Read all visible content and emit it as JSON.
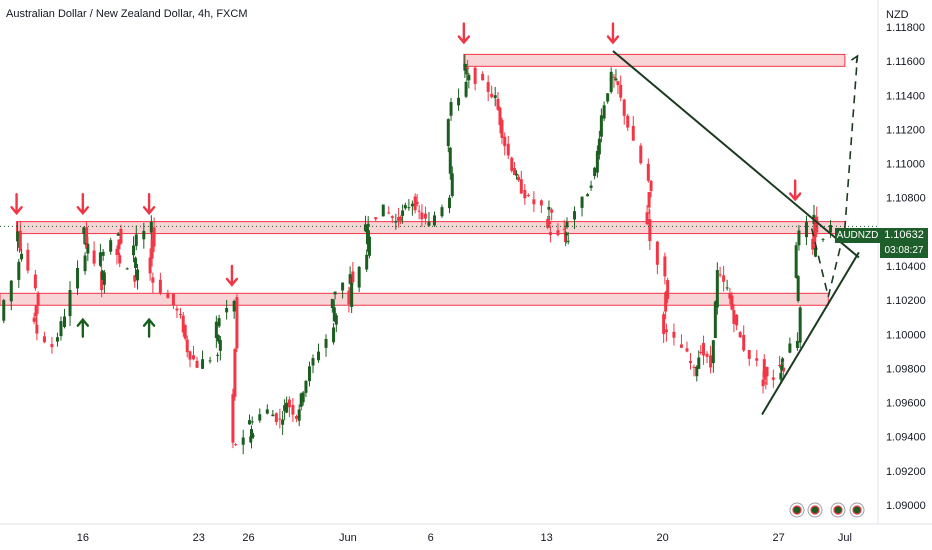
{
  "header": {
    "title": "Australian Dollar / New Zealand Dollar, 4h, FXCM"
  },
  "price_axis": {
    "currency": "NZD"
  },
  "symbol_label": {
    "ticker": "AUDNZD",
    "price": "1.10632",
    "countdown": "03:08:27"
  },
  "chart_data": {
    "type": "candlestick",
    "title": "Australian Dollar / New Zealand Dollar, 4h, FXCM",
    "y_unit": "NZD",
    "ylim": [
      1.089,
      1.119
    ],
    "y_ticks": [
      "1.11800",
      "1.11600",
      "1.11400",
      "1.11200",
      "1.11000",
      "1.10800",
      "1.10600",
      "1.10400",
      "1.10200",
      "1.10000",
      "1.09800",
      "1.09600",
      "1.09400",
      "1.09200",
      "1.09000"
    ],
    "x_ticks": [
      "16",
      "23",
      "26",
      "Jun",
      "6",
      "13",
      "20",
      "27",
      "Jul"
    ],
    "last_price": 1.10632,
    "colors": {
      "up": "#1b5e20",
      "down": "#f23645",
      "zone_fill": "#f7c6c9",
      "zone_stroke": "#f23645",
      "trend": "#1b3a1f",
      "arrow_down": "#f23645",
      "arrow_up": "#1b5e20",
      "badge": "#1e5e2a"
    },
    "price_path": [
      {
        "date": "2022-05-11",
        "price": 1.1008
      },
      {
        "date": "2022-05-12",
        "price": 1.1043
      },
      {
        "date": "2022-05-12",
        "price": 1.1063
      },
      {
        "date": "2022-05-13",
        "price": 1.1024
      },
      {
        "date": "2022-05-13",
        "price": 1.1005
      },
      {
        "date": "2022-05-14",
        "price": 1.0993
      },
      {
        "date": "2022-05-15",
        "price": 1.1012
      },
      {
        "date": "2022-05-16",
        "price": 1.1049
      },
      {
        "date": "2022-05-16",
        "price": 1.1063
      },
      {
        "date": "2022-05-17",
        "price": 1.1028
      },
      {
        "date": "2022-05-17",
        "price": 1.1046
      },
      {
        "date": "2022-05-18",
        "price": 1.1061
      },
      {
        "date": "2022-05-18",
        "price": 1.1045
      },
      {
        "date": "2022-05-19",
        "price": 1.1032
      },
      {
        "date": "2022-05-19",
        "price": 1.1052
      },
      {
        "date": "2022-05-20",
        "price": 1.1063
      },
      {
        "date": "2022-05-20",
        "price": 1.1036
      },
      {
        "date": "2022-05-21",
        "price": 1.1021
      },
      {
        "date": "2022-05-22",
        "price": 1.1009
      },
      {
        "date": "2022-05-22",
        "price": 1.0991
      },
      {
        "date": "2022-05-23",
        "price": 1.0982
      },
      {
        "date": "2022-05-24",
        "price": 1.0988
      },
      {
        "date": "2022-05-24",
        "price": 1.1006
      },
      {
        "date": "2022-05-25",
        "price": 1.1019
      },
      {
        "date": "2022-05-25",
        "price": 1.0935
      },
      {
        "date": "2022-05-26",
        "price": 1.0938
      },
      {
        "date": "2022-05-26",
        "price": 1.0949
      },
      {
        "date": "2022-05-27",
        "price": 1.0955
      },
      {
        "date": "2022-05-28",
        "price": 1.0949
      },
      {
        "date": "2022-05-28",
        "price": 1.0961
      },
      {
        "date": "2022-05-29",
        "price": 1.0952
      },
      {
        "date": "2022-05-29",
        "price": 1.0968
      },
      {
        "date": "2022-05-30",
        "price": 1.0985
      },
      {
        "date": "2022-05-31",
        "price": 1.1004
      },
      {
        "date": "2022-05-31",
        "price": 1.1022
      },
      {
        "date": "2022-06-01",
        "price": 1.1034
      },
      {
        "date": "2022-06-01",
        "price": 1.1018
      },
      {
        "date": "2022-06-02",
        "price": 1.1049
      },
      {
        "date": "2022-06-02",
        "price": 1.1065
      },
      {
        "date": "2022-06-03",
        "price": 1.1073
      },
      {
        "date": "2022-06-04",
        "price": 1.1066
      },
      {
        "date": "2022-06-04",
        "price": 1.1071
      },
      {
        "date": "2022-06-05",
        "price": 1.1078
      },
      {
        "date": "2022-06-05",
        "price": 1.1071
      },
      {
        "date": "2022-06-06",
        "price": 1.1064
      },
      {
        "date": "2022-06-07",
        "price": 1.1082
      },
      {
        "date": "2022-06-07",
        "price": 1.1126
      },
      {
        "date": "2022-06-08",
        "price": 1.1148
      },
      {
        "date": "2022-06-08",
        "price": 1.1157
      },
      {
        "date": "2022-06-09",
        "price": 1.1146
      },
      {
        "date": "2022-06-10",
        "price": 1.1138
      },
      {
        "date": "2022-06-10",
        "price": 1.1118
      },
      {
        "date": "2022-06-11",
        "price": 1.1098
      },
      {
        "date": "2022-06-11",
        "price": 1.1088
      },
      {
        "date": "2022-06-12",
        "price": 1.1079
      },
      {
        "date": "2022-06-13",
        "price": 1.1072
      },
      {
        "date": "2022-06-13",
        "price": 1.1062
      },
      {
        "date": "2022-06-14",
        "price": 1.1054
      },
      {
        "date": "2022-06-14",
        "price": 1.1062
      },
      {
        "date": "2022-06-15",
        "price": 1.1078
      },
      {
        "date": "2022-06-16",
        "price": 1.1096
      },
      {
        "date": "2022-06-16",
        "price": 1.1128
      },
      {
        "date": "2022-06-17",
        "price": 1.1151
      },
      {
        "date": "2022-06-17",
        "price": 1.1145
      },
      {
        "date": "2022-06-18",
        "price": 1.1122
      },
      {
        "date": "2022-06-19",
        "price": 1.1089
      },
      {
        "date": "2022-06-19",
        "price": 1.1066
      },
      {
        "date": "2022-06-20",
        "price": 1.1032
      },
      {
        "date": "2022-06-20",
        "price": 1.1003
      },
      {
        "date": "2022-06-21",
        "price": 1.0992
      },
      {
        "date": "2022-06-22",
        "price": 1.0978
      },
      {
        "date": "2022-06-22",
        "price": 1.0992
      },
      {
        "date": "2022-06-23",
        "price": 1.0981
      },
      {
        "date": "2022-06-23",
        "price": 1.1036
      },
      {
        "date": "2022-06-24",
        "price": 1.1026
      },
      {
        "date": "2022-06-24",
        "price": 1.1009
      },
      {
        "date": "2022-06-25",
        "price": 1.0992
      },
      {
        "date": "2022-06-26",
        "price": 1.0978
      },
      {
        "date": "2022-06-26",
        "price": 1.0971
      },
      {
        "date": "2022-06-27",
        "price": 1.0978
      },
      {
        "date": "2022-06-27",
        "price": 1.0984
      },
      {
        "date": "2022-06-28",
        "price": 1.0998
      },
      {
        "date": "2022-06-28",
        "price": 1.1054
      },
      {
        "date": "2022-06-29",
        "price": 1.1068
      },
      {
        "date": "2022-06-29",
        "price": 1.1048
      },
      {
        "date": "2022-06-30",
        "price": 1.1063
      }
    ],
    "zones": [
      {
        "from": "2022-06-08",
        "to": "2022-07-01",
        "low": 1.1157,
        "high": 1.1164
      },
      {
        "from": "2022-05-12",
        "to": "2022-07-01",
        "low": 1.1059,
        "high": 1.1066
      },
      {
        "from": "2022-05-11",
        "to": "2022-06-30",
        "low": 1.1017,
        "high": 1.1024
      }
    ],
    "trend_lines": [
      {
        "from": {
          "date": "2022-06-17",
          "price": 1.1166
        },
        "to": {
          "date": "2022-07-01",
          "price": 1.1045
        }
      },
      {
        "from": {
          "date": "2022-06-26",
          "price": 1.0953
        },
        "to": {
          "date": "2022-07-01",
          "price": 1.1048
        }
      }
    ],
    "projection": [
      {
        "date": "2022-06-29",
        "price": 1.1062
      },
      {
        "date": "2022-06-30",
        "price": 1.1022
      },
      {
        "date": "2022-07-01",
        "price": 1.1062
      },
      {
        "date": "2022-07-02",
        "price": 1.1163
      }
    ],
    "down_arrows": [
      {
        "date": "2022-05-12",
        "price": 1.1068
      },
      {
        "date": "2022-05-16",
        "price": 1.1068
      },
      {
        "date": "2022-05-20",
        "price": 1.1068
      },
      {
        "date": "2022-05-25",
        "price": 1.1026
      },
      {
        "date": "2022-06-08",
        "price": 1.1168
      },
      {
        "date": "2022-06-17",
        "price": 1.1168
      },
      {
        "date": "2022-06-28",
        "price": 1.1076
      }
    ],
    "up_arrows": [
      {
        "date": "2022-05-16",
        "price": 1.1015
      },
      {
        "date": "2022-05-20",
        "price": 1.1015
      }
    ]
  }
}
